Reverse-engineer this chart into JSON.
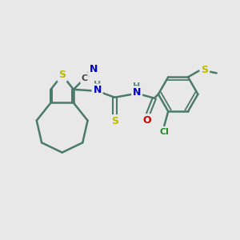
{
  "bg_color": "#e8e8e8",
  "bond_color": "#4a7a6a",
  "atom_colors": {
    "S": "#bbbb00",
    "N": "#0000cc",
    "O": "#cc0000",
    "Cl": "#228b22",
    "C_label": "#444444",
    "H": "#5a8a7a"
  },
  "figsize": [
    3.0,
    3.0
  ],
  "dpi": 100
}
